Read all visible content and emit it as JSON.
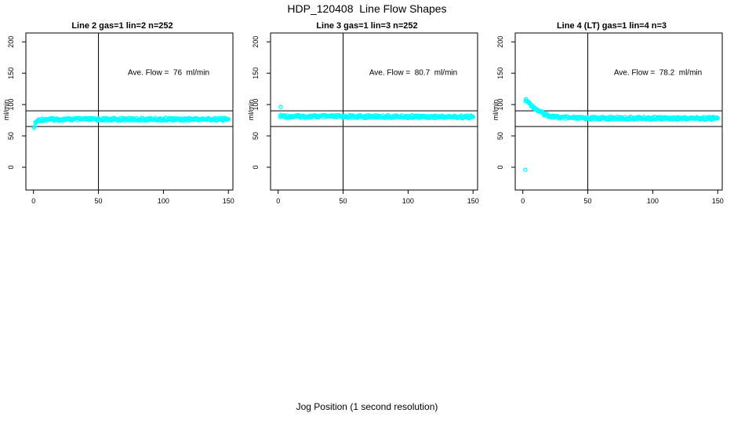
{
  "figure": {
    "title": "HDP_120408  Line Flow Shapes",
    "xlabel": "Jog Position (1 second resolution)",
    "ylabel": "ml/min",
    "colors": {
      "points": "#00FFFF",
      "axis": "#000000",
      "background": "#FFFFFF"
    }
  },
  "chart_data": [
    {
      "type": "scatter",
      "title": "Line 2 gas=1 lin=2 n=252",
      "annotation": "Ave. Flow =  76  ml/min",
      "ave_flow": 76,
      "ylabel": "ml/min",
      "xlim": [
        0,
        150
      ],
      "ylim": [
        0,
        200
      ],
      "x_ticks": [
        0,
        50,
        100,
        150
      ],
      "y_ticks": [
        0,
        50,
        100,
        150,
        200
      ],
      "vline_x": 50,
      "hlines": [
        65,
        90
      ],
      "grid": false,
      "outliers": [
        [
          0.5,
          63
        ]
      ],
      "points": [
        [
          1,
          67
        ],
        [
          1.5,
          69.5
        ],
        [
          2,
          71.5
        ],
        [
          3,
          73.5
        ],
        [
          4,
          74.8
        ],
        [
          5,
          75.4
        ],
        [
          6,
          75.8
        ],
        [
          8,
          76.1
        ],
        [
          10,
          76.2
        ],
        [
          15,
          76.3
        ],
        [
          20,
          76.3
        ],
        [
          30,
          76.4
        ],
        [
          40,
          76.4
        ],
        [
          50,
          76.4
        ],
        [
          60,
          76.4
        ],
        [
          70,
          76.5
        ],
        [
          80,
          76.5
        ],
        [
          90,
          76.5
        ],
        [
          100,
          76.5
        ],
        [
          110,
          76.5
        ],
        [
          120,
          76.6
        ],
        [
          130,
          76.6
        ],
        [
          140,
          76.6
        ],
        [
          150,
          76.6
        ]
      ]
    },
    {
      "type": "scatter",
      "title": "Line 3 gas=1 lin=3 n=252",
      "annotation": "Ave. Flow =  80.7  ml/min",
      "ave_flow": 80.7,
      "ylabel": "ml/min",
      "xlim": [
        0,
        150
      ],
      "ylim": [
        0,
        200
      ],
      "x_ticks": [
        0,
        50,
        100,
        150
      ],
      "y_ticks": [
        0,
        50,
        100,
        150,
        200
      ],
      "vline_x": 50,
      "hlines": [
        65,
        90
      ],
      "grid": false,
      "outliers": [
        [
          2,
          96
        ]
      ],
      "points": [
        [
          1.5,
          82
        ],
        [
          2,
          81.6
        ],
        [
          3,
          81.4
        ],
        [
          4,
          81.3
        ],
        [
          6,
          81.2
        ],
        [
          10,
          81.1
        ],
        [
          20,
          81
        ],
        [
          30,
          81
        ],
        [
          40,
          80.9
        ],
        [
          50,
          80.9
        ],
        [
          60,
          80.8
        ],
        [
          70,
          80.8
        ],
        [
          80,
          80.7
        ],
        [
          90,
          80.7
        ],
        [
          100,
          80.6
        ],
        [
          110,
          80.6
        ],
        [
          120,
          80.5
        ],
        [
          130,
          80.5
        ],
        [
          140,
          80.4
        ],
        [
          150,
          80.4
        ]
      ]
    },
    {
      "type": "scatter",
      "title": "Line 4 (LT) gas=1 lin=4 n=3",
      "annotation": "Ave. Flow =  78.2  ml/min",
      "ave_flow": 78.2,
      "ylabel": "ml/min",
      "xlim": [
        0,
        150
      ],
      "ylim": [
        0,
        200
      ],
      "x_ticks": [
        0,
        50,
        100,
        150
      ],
      "y_ticks": [
        0,
        50,
        100,
        150,
        200
      ],
      "vline_x": 50,
      "hlines": [
        65,
        90
      ],
      "grid": false,
      "outliers": [
        [
          2,
          -4
        ]
      ],
      "points": [
        [
          2,
          107.5
        ],
        [
          3,
          106
        ],
        [
          4,
          104
        ],
        [
          5,
          102
        ],
        [
          6,
          100
        ],
        [
          7,
          98
        ],
        [
          8,
          96.5
        ],
        [
          9,
          95
        ],
        [
          10,
          93
        ],
        [
          11,
          91.5
        ],
        [
          12,
          90
        ],
        [
          13,
          89
        ],
        [
          14,
          87.5
        ],
        [
          15,
          86.5
        ],
        [
          16,
          85.5
        ],
        [
          17,
          84.5
        ],
        [
          18,
          83.8
        ],
        [
          19,
          83
        ],
        [
          20,
          82.4
        ],
        [
          22,
          81.4
        ],
        [
          24,
          80.6
        ],
        [
          26,
          80
        ],
        [
          28,
          79.6
        ],
        [
          30,
          79.2
        ],
        [
          34,
          78.8
        ],
        [
          38,
          78.6
        ],
        [
          42,
          78.4
        ],
        [
          46,
          78.3
        ],
        [
          50,
          78.3
        ],
        [
          60,
          78.2
        ],
        [
          70,
          78.2
        ],
        [
          80,
          78.2
        ],
        [
          90,
          78.3
        ],
        [
          100,
          78.2
        ],
        [
          110,
          78.2
        ],
        [
          120,
          78.1
        ],
        [
          130,
          78.2
        ],
        [
          140,
          78.1
        ],
        [
          150,
          78.1
        ]
      ]
    }
  ]
}
